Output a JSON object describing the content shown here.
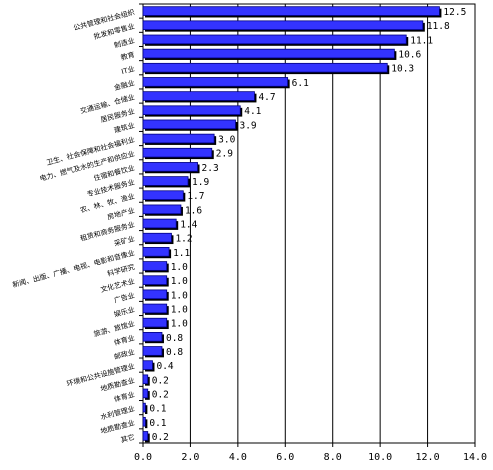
{
  "chart_data": {
    "type": "bar",
    "orientation": "horizontal",
    "categories": [
      "公共管理和社会组织",
      "批发和零售业",
      "制造业",
      "教育",
      "IT业",
      "金融业",
      "交通运输、仓储业",
      "居民服务业",
      "建筑业",
      "卫生、社会保障和社会福利业",
      "电力、燃气及水的生产和供应业",
      "住宿和餐饮业",
      "专业技术服务业",
      "农、林、牧、渔业",
      "房地产业",
      "租赁和商务服务业",
      "采矿业",
      "新闻、出版、广播、电视、电影和音像业",
      "科学研究",
      "文化艺术业",
      "广告业",
      "娱乐业",
      "旅游、旅馆业",
      "体育业",
      "邮政业",
      "环境和公共设施管理业",
      "地质勘查业",
      "体育业",
      "水利管理业",
      "地质勘查业",
      "其它"
    ],
    "values": [
      12.5,
      11.8,
      11.1,
      10.6,
      10.3,
      6.1,
      4.7,
      4.1,
      3.9,
      3.0,
      2.9,
      2.3,
      1.9,
      1.7,
      1.6,
      1.4,
      1.2,
      1.1,
      1.0,
      1.0,
      1.0,
      1.0,
      1.0,
      0.8,
      0.8,
      0.4,
      0.2,
      0.2,
      0.1,
      0.1,
      0.2
    ],
    "value_labels": [
      "12.5",
      "11.8",
      "11.1",
      "10.6",
      "10.3",
      "6.1",
      "4.7",
      "4.1",
      "3.9",
      "3.0",
      "2.9",
      "2.3",
      "1.9",
      "1.7",
      "1.6",
      "1.4",
      "1.2",
      "1.1",
      "1.0",
      "1.0",
      "1.0",
      "1.0",
      "1.0",
      "0.8",
      "0.8",
      "0.4",
      "0.2",
      "0.2",
      "0.1",
      "0.1",
      "0.2"
    ],
    "xlim": [
      0,
      14
    ],
    "xticks": [
      "0.0",
      "2.0",
      "4.0",
      "6.0",
      "8.0",
      "10.0",
      "12.0",
      "14.0"
    ],
    "grid": "vertical",
    "bar_color": "#3333ff",
    "bar_edge_color": "#000080",
    "title": "",
    "xlabel": "",
    "ylabel": ""
  }
}
